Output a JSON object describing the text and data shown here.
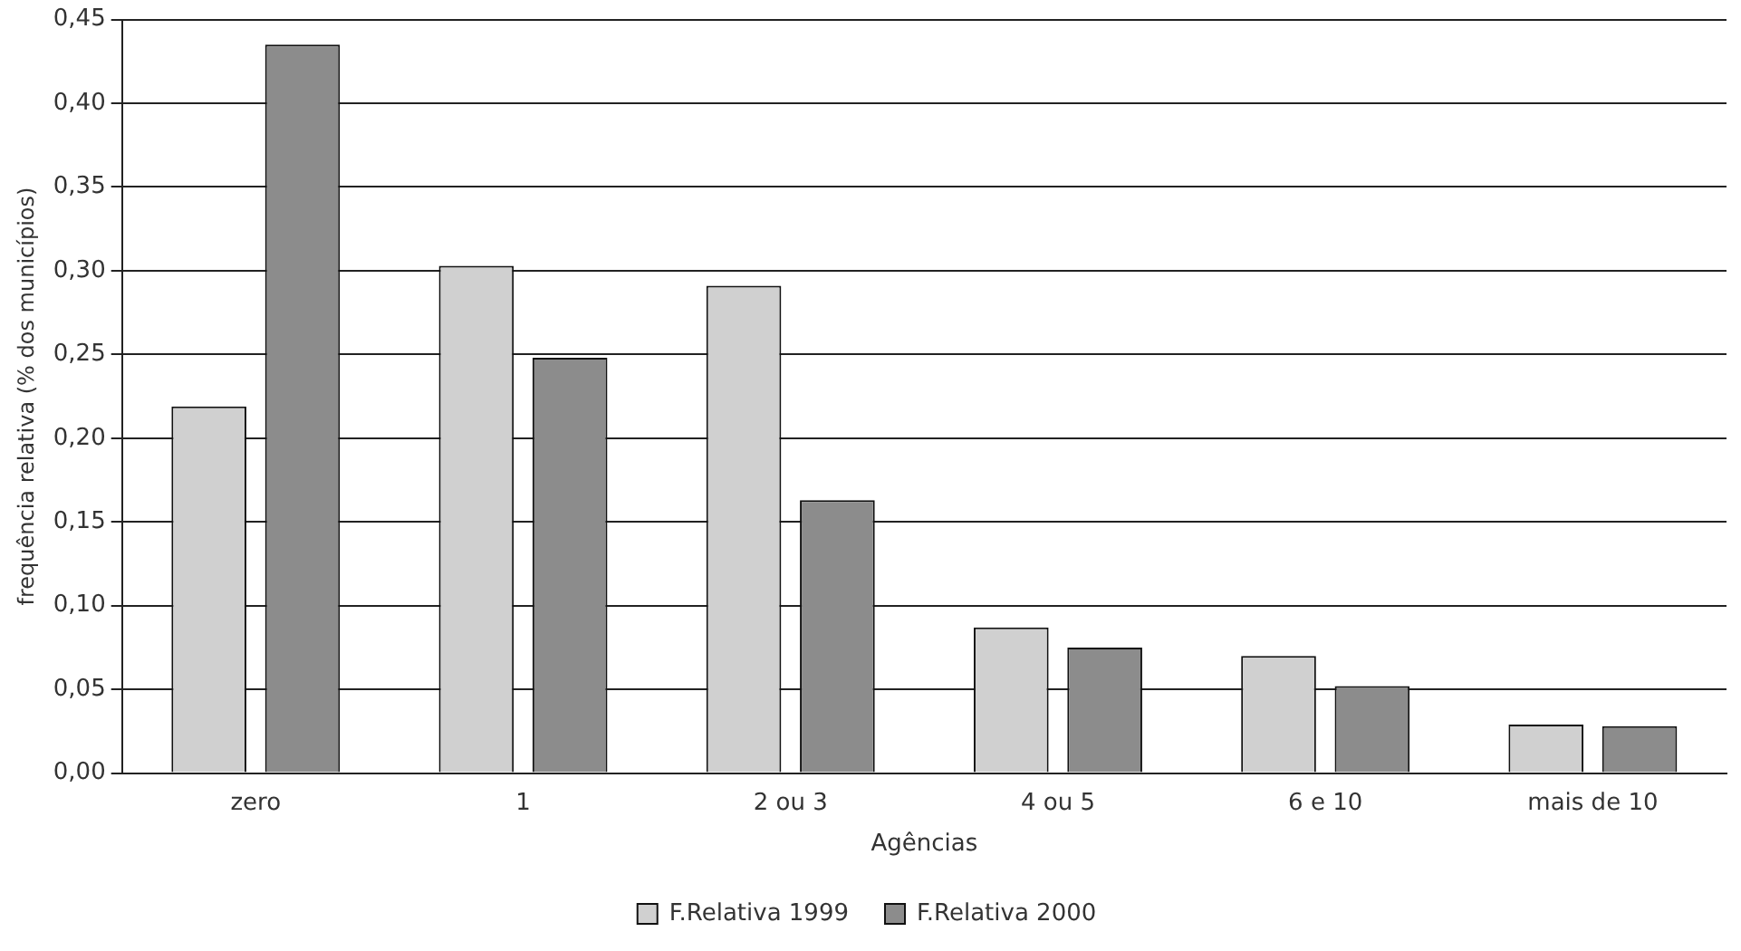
{
  "chart_data": {
    "type": "bar",
    "xlabel": "Agências",
    "ylabel": "frequência relativa (% dos municípios)",
    "categories": [
      "zero",
      "1",
      "2 ou 3",
      "4 ou 5",
      "6 e 10",
      "mais de 10"
    ],
    "series": [
      {
        "name": "F.Relativa 1999",
        "color": "#d0d0d0",
        "values": [
          0.219,
          0.303,
          0.291,
          0.087,
          0.07,
          0.029
        ]
      },
      {
        "name": "F.Relativa 2000",
        "color": "#8c8c8c",
        "values": [
          0.435,
          0.248,
          0.163,
          0.075,
          0.052,
          0.028
        ]
      }
    ],
    "ylim": [
      0,
      0.45
    ],
    "yticks": [
      {
        "value": 0,
        "label": "0,00"
      },
      {
        "value": 0.05,
        "label": "0,05"
      },
      {
        "value": 0.1,
        "label": "0,10"
      },
      {
        "value": 0.15,
        "label": "0,15"
      },
      {
        "value": 0.2,
        "label": "0,20"
      },
      {
        "value": 0.25,
        "label": "0,25"
      },
      {
        "value": 0.3,
        "label": "0,30"
      },
      {
        "value": 0.35,
        "label": "0,35"
      },
      {
        "value": 0.4,
        "label": "0,40"
      },
      {
        "value": 0.45,
        "label": "0,45"
      }
    ],
    "grid": "y",
    "legend": "bottom"
  }
}
